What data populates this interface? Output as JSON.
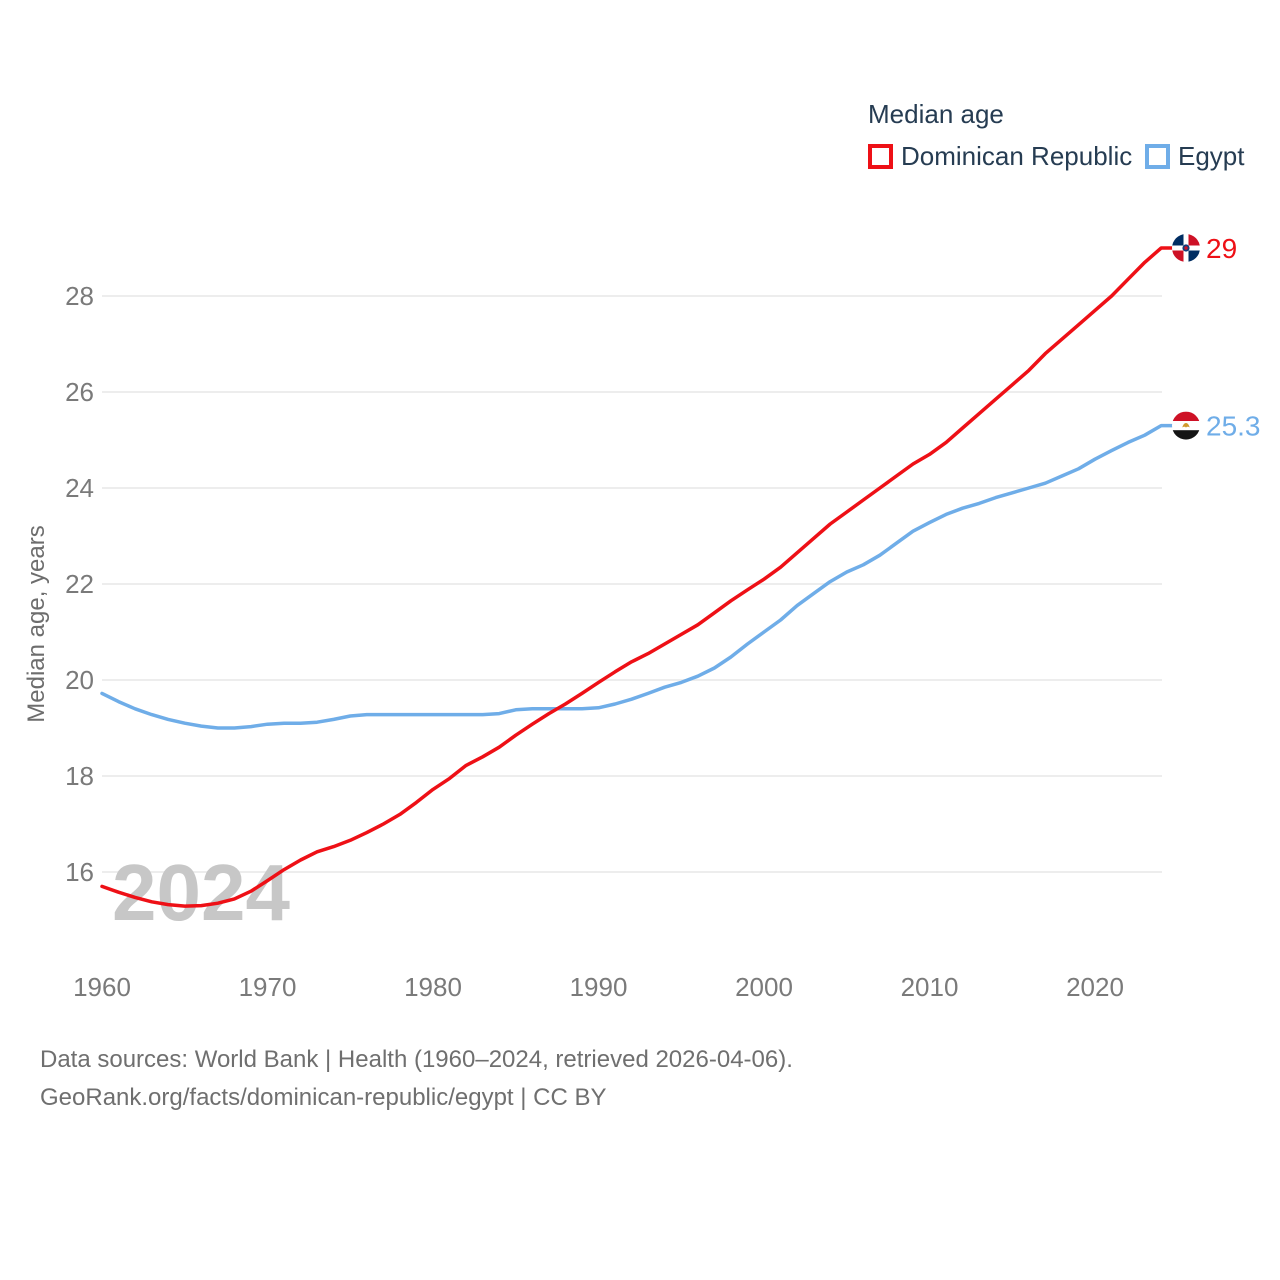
{
  "legend": {
    "title": "Median age",
    "items": [
      {
        "label": "Dominican Republic",
        "color": "#ee1016"
      },
      {
        "label": "Egypt",
        "color": "#6fade8"
      }
    ]
  },
  "chart_data": {
    "type": "line",
    "title": "Median age",
    "ylabel": "Median age, years",
    "watermark": "2024",
    "grid": "horizontal",
    "legend_position": "top-right",
    "xlim": [
      1960,
      2024
    ],
    "ylim": [
      15,
      29.5
    ],
    "xticks": [
      1960,
      1970,
      1980,
      1990,
      2000,
      2010,
      2020
    ],
    "yticks": [
      16,
      18,
      20,
      22,
      24,
      26,
      28
    ],
    "x": [
      1960,
      1961,
      1962,
      1963,
      1964,
      1965,
      1966,
      1967,
      1968,
      1969,
      1970,
      1971,
      1972,
      1973,
      1974,
      1975,
      1976,
      1977,
      1978,
      1979,
      1980,
      1981,
      1982,
      1983,
      1984,
      1985,
      1986,
      1987,
      1988,
      1989,
      1990,
      1991,
      1992,
      1993,
      1994,
      1995,
      1996,
      1997,
      1998,
      1999,
      2000,
      2001,
      2002,
      2003,
      2004,
      2005,
      2006,
      2007,
      2008,
      2009,
      2010,
      2011,
      2012,
      2013,
      2014,
      2015,
      2016,
      2017,
      2018,
      2019,
      2020,
      2021,
      2022,
      2023,
      2024
    ],
    "series": [
      {
        "name": "Dominican Republic",
        "icon": "dominican-republic-flag",
        "color": "#ee1016",
        "end_value": 29,
        "end_label": "29",
        "values": [
          15.7,
          15.58,
          15.47,
          15.38,
          15.32,
          15.29,
          15.3,
          15.35,
          15.44,
          15.6,
          15.82,
          16.05,
          16.25,
          16.42,
          16.53,
          16.66,
          16.82,
          17.0,
          17.2,
          17.45,
          17.72,
          17.95,
          18.22,
          18.4,
          18.6,
          18.85,
          19.08,
          19.3,
          19.5,
          19.72,
          19.95,
          20.17,
          20.38,
          20.55,
          20.75,
          20.95,
          21.15,
          21.4,
          21.65,
          21.88,
          22.1,
          22.35,
          22.65,
          22.95,
          23.25,
          23.5,
          23.75,
          24.0,
          24.25,
          24.5,
          24.7,
          24.95,
          25.25,
          25.55,
          25.85,
          26.15,
          26.45,
          26.8,
          27.1,
          27.4,
          27.7,
          28.0,
          28.35,
          28.7,
          29.0
        ]
      },
      {
        "name": "Egypt",
        "icon": "egypt-flag",
        "color": "#6fade8",
        "end_value": 25.3,
        "end_label": "25.3",
        "values": [
          19.72,
          19.55,
          19.4,
          19.28,
          19.18,
          19.1,
          19.04,
          19.0,
          19.0,
          19.03,
          19.08,
          19.1,
          19.1,
          19.12,
          19.18,
          19.25,
          19.28,
          19.28,
          19.28,
          19.28,
          19.28,
          19.28,
          19.28,
          19.28,
          19.3,
          19.38,
          19.4,
          19.4,
          19.4,
          19.4,
          19.42,
          19.5,
          19.6,
          19.72,
          19.85,
          19.95,
          20.08,
          20.25,
          20.48,
          20.75,
          21.0,
          21.25,
          21.55,
          21.8,
          22.05,
          22.25,
          22.4,
          22.6,
          22.85,
          23.1,
          23.28,
          23.45,
          23.58,
          23.68,
          23.8,
          23.9,
          24.0,
          24.1,
          24.25,
          24.4,
          24.6,
          24.78,
          24.95,
          25.1,
          25.3
        ]
      }
    ],
    "style": {
      "grid_color": "#ededed",
      "axis_text_color": "#7a7a7a",
      "axis_title_color": "#6d6d6d",
      "watermark_color": "#c7c7c7",
      "flag_colors": {
        "dominican_republic": {
          "blue": "#002d62",
          "red": "#ce1126",
          "white": "#ffffff"
        },
        "egypt": {
          "red": "#ce1126",
          "white": "#ffffff",
          "black": "#141414",
          "gold": "#d09a2e"
        }
      }
    }
  },
  "footer": {
    "line1": "Data sources: World Bank | Health (1960–2024, retrieved 2026-04-06).",
    "line2": "GeoRank.org/facts/dominican-republic/egypt | CC BY"
  }
}
